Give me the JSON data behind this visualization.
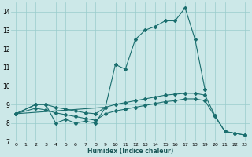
{
  "xlabel": "Humidex (Indice chaleur)",
  "bg_color": "#cce8e8",
  "grid_color": "#99cccc",
  "line_color": "#1a6e6e",
  "xlim": [
    -0.5,
    23.5
  ],
  "ylim": [
    7,
    14.5
  ],
  "xticks": [
    0,
    1,
    2,
    3,
    4,
    5,
    6,
    7,
    8,
    9,
    10,
    11,
    12,
    13,
    14,
    15,
    16,
    17,
    18,
    19,
    20,
    21,
    22,
    23
  ],
  "yticks": [
    7,
    8,
    9,
    10,
    11,
    12,
    13,
    14
  ],
  "line1_x": [
    0,
    2,
    3,
    4,
    5,
    6,
    7,
    8,
    9,
    10,
    11,
    12,
    13,
    14,
    15,
    16,
    17,
    18,
    19
  ],
  "line1_y": [
    8.5,
    9.0,
    9.0,
    8.0,
    8.2,
    8.0,
    8.1,
    8.0,
    8.85,
    11.15,
    10.9,
    12.5,
    13.0,
    13.2,
    13.5,
    13.5,
    14.2,
    12.5,
    9.8
  ],
  "line2_x": [
    0,
    2,
    3,
    4,
    5,
    6,
    7,
    8,
    9,
    10,
    11,
    12,
    13,
    14,
    15,
    16,
    17,
    18,
    19,
    20,
    21,
    22,
    23
  ],
  "line2_y": [
    8.5,
    9.0,
    9.0,
    8.85,
    8.75,
    8.65,
    8.55,
    8.5,
    8.85,
    9.0,
    9.1,
    9.2,
    9.3,
    9.4,
    9.5,
    9.55,
    9.6,
    9.6,
    9.5,
    8.4,
    7.55,
    7.45,
    7.35
  ],
  "line3_x": [
    0,
    2,
    3,
    4,
    5,
    6,
    7,
    8,
    9,
    10,
    11,
    12,
    13,
    14,
    15,
    16,
    17,
    18,
    19,
    20,
    21,
    22,
    23
  ],
  "line3_y": [
    8.5,
    8.8,
    8.7,
    8.55,
    8.45,
    8.35,
    8.25,
    8.15,
    8.5,
    8.65,
    8.75,
    8.85,
    8.95,
    9.05,
    9.15,
    9.2,
    9.3,
    9.3,
    9.2,
    8.35,
    7.55,
    7.45,
    7.35
  ],
  "line4_x": [
    0,
    9
  ],
  "line4_y": [
    8.5,
    8.85
  ]
}
